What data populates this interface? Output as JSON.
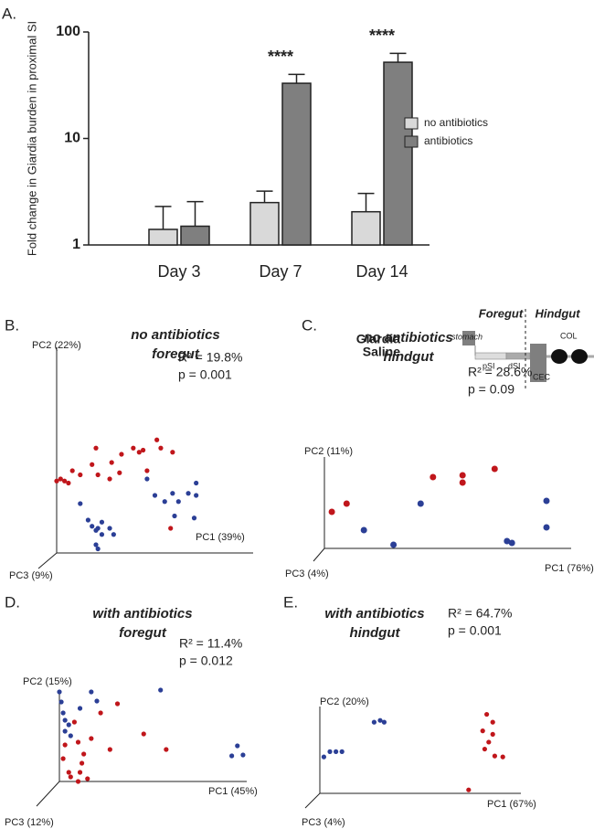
{
  "legend": [
    {
      "name": "Giardia",
      "color": "#c0161b"
    },
    {
      "name": "Saline",
      "color": "#2b3f96"
    }
  ],
  "diagram": {
    "foregut": "Foregut",
    "hindgut": "Hindgut",
    "stomach": "stomach",
    "psi": "pSI",
    "dsi": "dSI",
    "cec": "CEC",
    "col": "COL"
  },
  "chart_data": [
    {
      "type": "bar",
      "panel": "A.",
      "ylabel": "Fold change in Giardia burden in proximal SI",
      "categories": [
        "Day 3",
        "Day 7",
        "Day 14"
      ],
      "log_scale": true,
      "ylim": [
        1,
        100
      ],
      "yticks": [
        1,
        10,
        100
      ],
      "annotations": [
        null,
        "****",
        "****"
      ],
      "legend_position": "right",
      "series": [
        {
          "name": "no antibiotics",
          "color": "#d9d9d9",
          "values": [
            1.4,
            2.5,
            2.05
          ],
          "errors": [
            0.9,
            0.7,
            1.0
          ]
        },
        {
          "name": "antibiotics",
          "color": "#7f7f7f",
          "values": [
            1.5,
            33,
            52
          ],
          "errors": [
            1.05,
            7,
            11
          ]
        }
      ]
    },
    {
      "type": "scatter",
      "panel": "B.",
      "title": [
        "no antibiotics",
        "foregut"
      ],
      "stats": [
        "R² = 19.8%",
        "p = 0.001"
      ],
      "xlabel": "PC1 (39%)",
      "ylabel": "PC2 (22%)",
      "zlabel": "PC3 (9%)",
      "xlim": [
        0,
        100
      ],
      "ylim": [
        0,
        100
      ],
      "series": [
        {
          "color": "#c0161b",
          "x": [
            0,
            2,
            4,
            6,
            8,
            12,
            18,
            20,
            21,
            27,
            28,
            32,
            33,
            39,
            42,
            44,
            46,
            51,
            53,
            59,
            58
          ],
          "values": [
            35,
            36,
            35,
            34,
            40,
            38,
            43,
            51,
            38,
            36,
            44,
            39,
            48,
            51,
            49,
            50,
            40,
            55,
            51,
            49,
            12
          ]
        },
        {
          "color": "#2b3f96",
          "x": [
            12,
            16,
            18,
            20,
            21,
            23,
            23,
            20,
            21,
            27,
            29,
            46,
            50,
            55,
            59,
            62,
            67,
            71,
            71,
            70,
            60
          ],
          "values": [
            24,
            16,
            13,
            11,
            12,
            15,
            9,
            4,
            2,
            12,
            9,
            36,
            28,
            25,
            29,
            25,
            29,
            34,
            28,
            17,
            18
          ]
        }
      ]
    },
    {
      "type": "scatter",
      "panel": "C.",
      "title": [
        "no antibiotics",
        "hindgut"
      ],
      "stats": [
        "R² = 28.6%",
        "p = 0.09"
      ],
      "xlabel": "PC1 (76%)",
      "ylabel": "PC2 (11%)",
      "zlabel": "PC3 (4%)",
      "xlim": [
        0,
        100
      ],
      "ylim": [
        0,
        100
      ],
      "series": [
        {
          "color": "#c0161b",
          "x": [
            3,
            9,
            44,
            56,
            56,
            69
          ],
          "values": [
            40,
            49,
            78,
            80,
            72,
            87
          ]
        },
        {
          "color": "#2b3f96",
          "x": [
            16,
            28,
            39,
            74,
            76,
            90,
            90
          ],
          "values": [
            20,
            4,
            49,
            8,
            6,
            23,
            52
          ]
        }
      ]
    },
    {
      "type": "scatter",
      "panel": "D.",
      "title": [
        "with antibiotics",
        "foregut"
      ],
      "stats": [
        "R² = 11.4%",
        "p = 0.012"
      ],
      "xlabel": "PC1 (45%)",
      "ylabel": "PC2 (15%)",
      "zlabel": "PC3 (12%)",
      "xlim": [
        0,
        100
      ],
      "ylim": [
        0,
        100
      ],
      "series": [
        {
          "color": "#c0161b",
          "x": [
            3,
            2,
            5,
            6,
            10,
            15,
            12,
            13,
            10,
            17,
            8,
            22,
            31,
            45,
            57,
            11,
            27
          ],
          "values": [
            40,
            25,
            10,
            5,
            0,
            3,
            20,
            30,
            43,
            47,
            65,
            75,
            85,
            52,
            35,
            10,
            35
          ]
        },
        {
          "color": "#2b3f96",
          "x": [
            0,
            1,
            2,
            3,
            5,
            3,
            6,
            11,
            17,
            20,
            54,
            95,
            98,
            92
          ],
          "values": [
            98,
            87,
            75,
            67,
            62,
            55,
            50,
            80,
            98,
            88,
            100,
            39,
            29,
            28
          ]
        }
      ]
    },
    {
      "type": "scatter",
      "panel": "E.",
      "title": [
        "with antibiotics",
        "hindgut"
      ],
      "stats": [
        "R² = 64.7%",
        "p = 0.001"
      ],
      "xlabel": "PC1 (67%)",
      "ylabel": "PC2 (20%)",
      "zlabel": "PC3 (4%)",
      "xlim": [
        0,
        100
      ],
      "ylim": [
        0,
        100
      ],
      "series": [
        {
          "color": "#c0161b",
          "x": [
            83,
            86,
            81,
            86,
            91,
            87,
            82,
            84,
            74
          ],
          "values": [
            91,
            82,
            72,
            68,
            42,
            43,
            51,
            59,
            4
          ]
        },
        {
          "color": "#2b3f96",
          "x": [
            2,
            5,
            8,
            11,
            27,
            30,
            32
          ],
          "values": [
            42,
            48,
            48,
            48,
            82,
            84,
            82
          ]
        }
      ]
    }
  ]
}
